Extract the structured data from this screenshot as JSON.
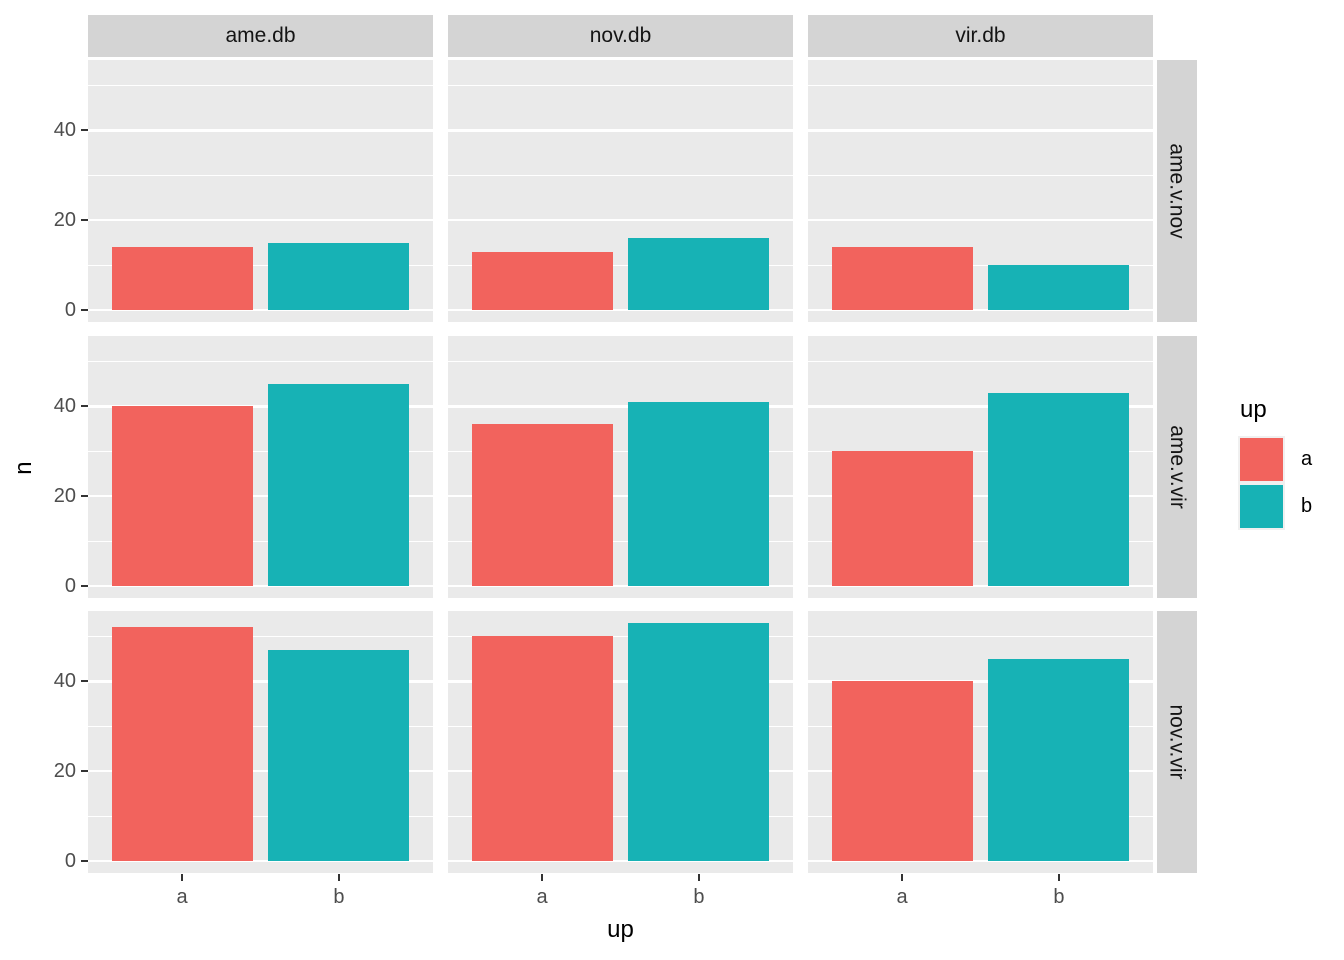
{
  "chart_data": {
    "type": "bar",
    "title": "",
    "xlabel": "up",
    "ylabel": "n",
    "x_categories": [
      "a",
      "b"
    ],
    "col_facets": [
      "ame.db",
      "nov.db",
      "vir.db"
    ],
    "row_facets": [
      "ame.v.nov",
      "ame.v.vir",
      "nov.v.vir"
    ],
    "y_axis": {
      "tick_labels": [
        "0",
        "20",
        "40"
      ],
      "major_ticks": [
        0,
        20,
        40
      ],
      "minor_ticks": [
        10,
        30,
        50
      ],
      "ylim": [
        -2.65,
        55.65
      ]
    },
    "legend": {
      "title": "up",
      "position": "right",
      "entries": [
        {
          "label": "a",
          "color": "#F2635D"
        },
        {
          "label": "b",
          "color": "#17B2B5"
        }
      ]
    },
    "grid": [
      {
        "row_facet": "ame.v.nov",
        "panels": [
          {
            "col_facet": "ame.db",
            "bars": [
              {
                "x": "a",
                "value": 14
              },
              {
                "x": "b",
                "value": 15
              }
            ]
          },
          {
            "col_facet": "nov.db",
            "bars": [
              {
                "x": "a",
                "value": 13
              },
              {
                "x": "b",
                "value": 16
              }
            ]
          },
          {
            "col_facet": "vir.db",
            "bars": [
              {
                "x": "a",
                "value": 14
              },
              {
                "x": "b",
                "value": 10
              }
            ]
          }
        ]
      },
      {
        "row_facet": "ame.v.vir",
        "panels": [
          {
            "col_facet": "ame.db",
            "bars": [
              {
                "x": "a",
                "value": 40
              },
              {
                "x": "b",
                "value": 45
              }
            ]
          },
          {
            "col_facet": "nov.db",
            "bars": [
              {
                "x": "a",
                "value": 36
              },
              {
                "x": "b",
                "value": 41
              }
            ]
          },
          {
            "col_facet": "vir.db",
            "bars": [
              {
                "x": "a",
                "value": 30
              },
              {
                "x": "b",
                "value": 43
              }
            ]
          }
        ]
      },
      {
        "row_facet": "nov.v.vir",
        "panels": [
          {
            "col_facet": "ame.db",
            "bars": [
              {
                "x": "a",
                "value": 52
              },
              {
                "x": "b",
                "value": 47
              }
            ]
          },
          {
            "col_facet": "nov.db",
            "bars": [
              {
                "x": "a",
                "value": 50
              },
              {
                "x": "b",
                "value": 53
              }
            ]
          },
          {
            "col_facet": "vir.db",
            "bars": [
              {
                "x": "a",
                "value": 40
              },
              {
                "x": "b",
                "value": 45
              }
            ]
          }
        ]
      }
    ],
    "style": {
      "panel_bg": "#EAEAEA",
      "strip_bg": "#D4D4D4",
      "gridline_color": "#FFFFFF",
      "tick_text_color": "#4D4D4D",
      "grid": "on"
    }
  }
}
